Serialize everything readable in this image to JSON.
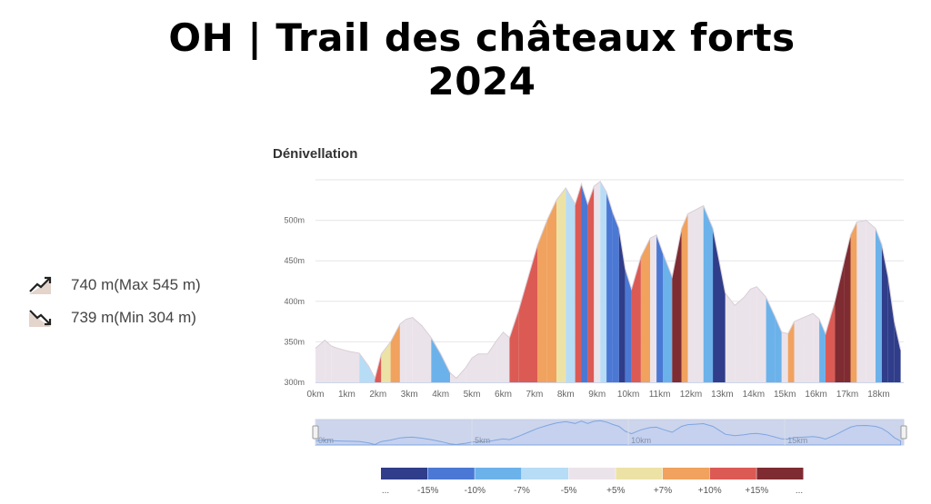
{
  "page": {
    "title_line1": "OH | Trail des châteaux forts",
    "title_line2": "2024"
  },
  "stats": {
    "ascent_text": "740 m(Max 545 m)",
    "descent_text": "739 m(Min 304 m)",
    "ascent_icon": "trend-up-icon",
    "descent_icon": "trend-down-icon"
  },
  "chart_data": {
    "type": "area",
    "title": "Dénivellation",
    "xlabel": "",
    "ylabel": "",
    "x_unit": "km",
    "y_unit": "m",
    "xlim": [
      0,
      18.8
    ],
    "ylim": [
      300,
      550
    ],
    "x_ticks": [
      "0km",
      "1km",
      "2km",
      "3km",
      "4km",
      "5km",
      "6km",
      "7km",
      "8km",
      "9km",
      "10km",
      "11km",
      "12km",
      "13km",
      "14km",
      "15km",
      "16km",
      "17km",
      "18km"
    ],
    "y_ticks": [
      "300m",
      "350m",
      "400m",
      "450m",
      "500m"
    ],
    "navigator_ticks": [
      "0km",
      "5km",
      "10km",
      "15km"
    ],
    "grid": true,
    "profile": {
      "x": [
        0,
        0.3,
        0.5,
        0.7,
        0.9,
        1.1,
        1.4,
        1.7,
        1.9,
        2.1,
        2.4,
        2.7,
        2.9,
        3.1,
        3.4,
        3.7,
        4.0,
        4.3,
        4.5,
        4.8,
        5.0,
        5.2,
        5.5,
        5.8,
        6.0,
        6.2,
        6.5,
        6.8,
        7.1,
        7.4,
        7.7,
        8.0,
        8.3,
        8.5,
        8.7,
        8.9,
        9.1,
        9.3,
        9.5,
        9.7,
        9.9,
        10.1,
        10.4,
        10.7,
        10.9,
        11.1,
        11.4,
        11.7,
        11.9,
        12.1,
        12.4,
        12.7,
        12.9,
        13.1,
        13.4,
        13.7,
        13.9,
        14.1,
        14.4,
        14.7,
        14.9,
        15.1,
        15.3,
        15.6,
        15.9,
        16.1,
        16.3,
        16.6,
        16.9,
        17.1,
        17.3,
        17.6,
        17.9,
        18.1,
        18.3,
        18.5,
        18.7
      ],
      "y": [
        342,
        352,
        345,
        342,
        340,
        338,
        336,
        320,
        305,
        335,
        350,
        372,
        378,
        380,
        370,
        355,
        335,
        312,
        305,
        318,
        330,
        335,
        335,
        352,
        362,
        355,
        390,
        430,
        470,
        500,
        525,
        540,
        520,
        545,
        520,
        542,
        548,
        535,
        510,
        490,
        440,
        415,
        455,
        478,
        482,
        460,
        430,
        490,
        508,
        512,
        518,
        490,
        450,
        410,
        395,
        405,
        415,
        418,
        405,
        380,
        362,
        360,
        375,
        380,
        385,
        378,
        360,
        400,
        450,
        482,
        498,
        500,
        490,
        470,
        430,
        375,
        340
      ],
      "grade_breaks": [
        0,
        0.3,
        0.5,
        0.9,
        1.4,
        1.9,
        2.1,
        2.4,
        2.7,
        2.9,
        3.1,
        3.4,
        3.7,
        4.3,
        4.8,
        5.2,
        5.8,
        6.0,
        6.2,
        6.5,
        6.8,
        7.1,
        7.4,
        7.7,
        8.0,
        8.3,
        8.5,
        8.7,
        8.9,
        9.1,
        9.3,
        9.5,
        9.7,
        9.9,
        10.1,
        10.4,
        10.7,
        10.9,
        11.1,
        11.4,
        11.7,
        11.9,
        12.1,
        12.4,
        12.7,
        12.9,
        13.1,
        13.4,
        13.7,
        13.9,
        14.1,
        14.4,
        14.7,
        14.9,
        15.1,
        15.3,
        15.6,
        15.9,
        16.1,
        16.3,
        16.6,
        16.9,
        17.1,
        17.3,
        17.6,
        17.9,
        18.1,
        18.3,
        18.5,
        18.7
      ]
    },
    "legend": {
      "placement": "bottom",
      "labels": [
        "...",
        "-15%",
        "-10%",
        "-7%",
        "-5%",
        "+5%",
        "+7%",
        "+10%",
        "+15%",
        "..."
      ],
      "colors": [
        "#2f3d8a",
        "#4a78d4",
        "#6cb2ea",
        "#b7dcf6",
        "#ebe3ea",
        "#ede2a6",
        "#f0a25e",
        "#dc5a54",
        "#7e2b31"
      ]
    }
  }
}
